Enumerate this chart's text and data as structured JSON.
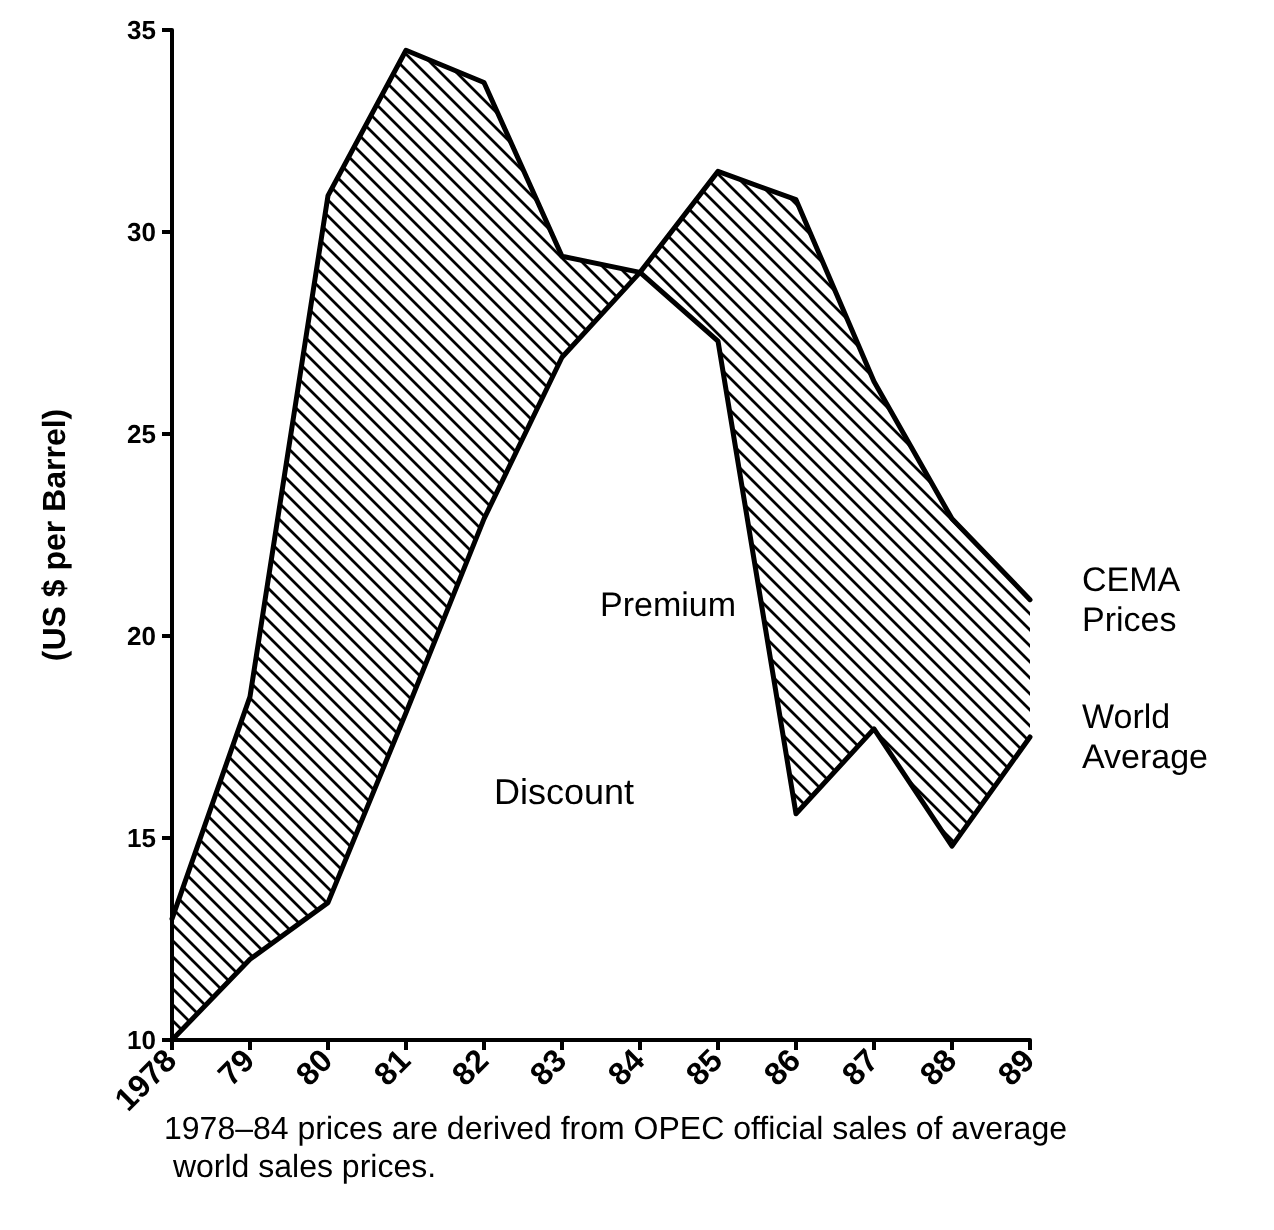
{
  "chart_data": {
    "type": "line",
    "ylabel": "(US $ per Barrel)",
    "categories": [
      "1978",
      "79",
      "80",
      "81",
      "82",
      "83",
      "84",
      "85",
      "86",
      "87",
      "88",
      "89"
    ],
    "series": [
      {
        "name": "CEMA Prices",
        "color": "#000000",
        "values": [
          13.0,
          18.5,
          30.9,
          34.5,
          33.7,
          29.4,
          29.0,
          31.5,
          30.8,
          26.3,
          22.9,
          20.9
        ]
      },
      {
        "name": "World Average",
        "color": "#000000",
        "values": [
          10.0,
          12.0,
          13.4,
          18.1,
          22.9,
          26.9,
          29.0,
          27.3,
          15.6,
          17.7,
          14.8,
          17.5
        ],
        "lower": [
          10.0,
          12.0,
          13.4,
          18.1,
          22.9,
          26.9,
          29.0,
          27.3,
          15.6,
          17.7,
          14.8,
          17.5
        ],
        "upper": [
          13.0,
          18.5,
          30.9,
          34.5,
          33.7,
          29.4,
          29.0,
          31.5,
          30.8,
          26.3,
          22.9,
          20.9
        ]
      }
    ],
    "ylim": [
      10,
      35
    ],
    "yticks": [
      10,
      15,
      20,
      25,
      30,
      35
    ],
    "grid": false,
    "legend": false,
    "marker": "none",
    "line_style": "solid",
    "annotations": [
      "Discount",
      "Premium",
      "1978–84 prices are derived from OPEC official sales of average world sales prices."
    ]
  }
}
